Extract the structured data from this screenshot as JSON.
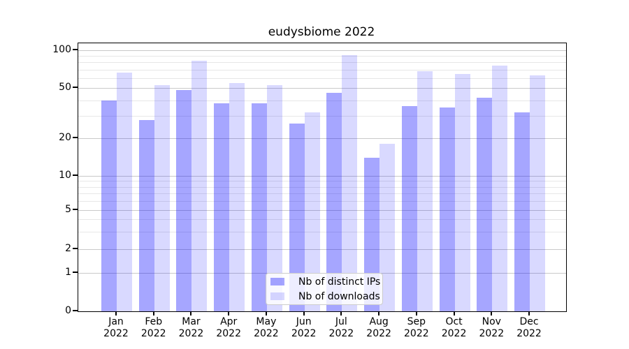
{
  "chart_data": {
    "type": "bar",
    "title": "eudysbiome 2022",
    "months": [
      "Jan",
      "Feb",
      "Mar",
      "Apr",
      "May",
      "Jun",
      "Jul",
      "Aug",
      "Sep",
      "Oct",
      "Nov",
      "Dec"
    ],
    "year": "2022",
    "series": [
      {
        "name": "Nb of distinct IPs",
        "color": "rgba(0,0,255,0.35)",
        "values": [
          40,
          28,
          48,
          38,
          38,
          26,
          46,
          14,
          36,
          35,
          42,
          32
        ]
      },
      {
        "name": "Nb of downloads",
        "color": "rgba(0,0,255,0.15)",
        "values": [
          66,
          53,
          82,
          55,
          53,
          32,
          91,
          18,
          68,
          65,
          75,
          63
        ]
      }
    ],
    "y_axis": {
      "scale": "symlog",
      "ticks": [
        0,
        1,
        2,
        5,
        10,
        20,
        50,
        100
      ],
      "minor_ticks": [
        3,
        4,
        6,
        7,
        8,
        9,
        30,
        40,
        60,
        70,
        80,
        90
      ],
      "ylim": [
        0,
        110
      ]
    },
    "xlabel": "",
    "ylabel": "",
    "grid": {
      "major_color": "#c9c9c9",
      "minor_color": "#e7e7e7"
    },
    "legend_position": "lower-center"
  }
}
